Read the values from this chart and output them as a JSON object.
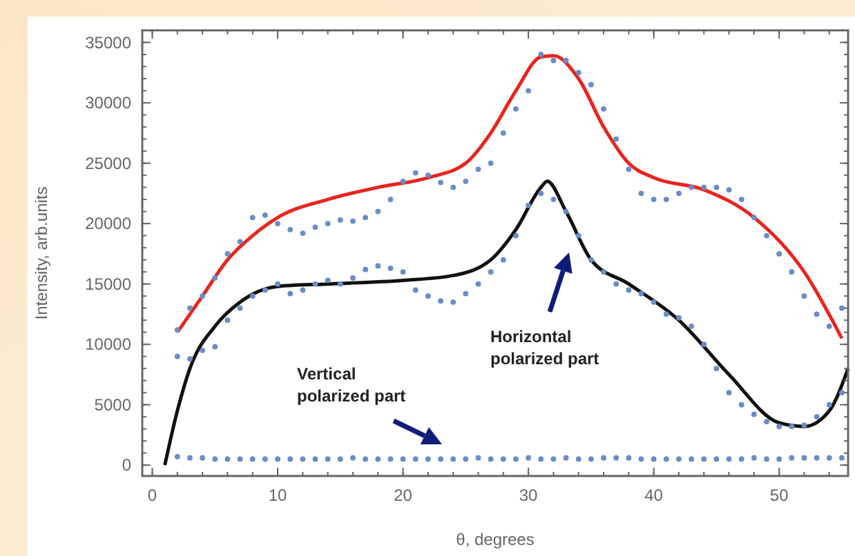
{
  "chart_data": {
    "type": "scatter",
    "xlabel": "θ, degrees",
    "ylabel": "Intensity, arb.units",
    "xlim": [
      -0.8,
      55.5
    ],
    "ylim": [
      -900,
      36000
    ],
    "xticks": [
      0,
      10,
      20,
      30,
      40,
      50
    ],
    "yticks": [
      0,
      5000,
      10000,
      15000,
      20000,
      25000,
      30000,
      35000
    ],
    "grid": false,
    "marker": "circle",
    "series": [
      {
        "color": "#6a8cc7",
        "x": [
          2,
          3,
          4,
          5,
          6,
          7,
          8,
          9,
          10,
          11,
          12,
          13,
          14,
          15,
          16,
          17,
          18,
          19,
          20,
          21,
          22,
          23,
          24,
          25,
          26,
          27,
          28,
          29,
          30,
          31,
          32,
          33,
          34,
          35,
          36,
          37,
          38,
          39,
          40,
          41,
          42,
          43,
          44,
          45,
          46,
          47,
          48,
          49,
          50,
          51,
          52,
          53,
          54,
          55
        ],
        "values": [
          11200,
          13000,
          14000,
          15500,
          17500,
          18500,
          20500,
          20700,
          20000,
          19500,
          19200,
          19700,
          20000,
          20300,
          20200,
          20500,
          21000,
          22000,
          23500,
          24200,
          24000,
          23400,
          23000,
          23500,
          24500,
          25000,
          27500,
          29500,
          31000,
          34000,
          33500,
          33500,
          32500,
          31500,
          29500,
          27000,
          24500,
          22500,
          22000,
          22000,
          22500,
          23000,
          23000,
          23000,
          22800,
          22000,
          20500,
          19000,
          17500,
          16000,
          14000,
          12500,
          11500,
          13000
        ]
      },
      {
        "color": "#6a8cc7",
        "x": [
          2,
          3,
          4,
          5,
          6,
          7,
          8,
          9,
          10,
          11,
          12,
          13,
          14,
          15,
          16,
          17,
          18,
          19,
          20,
          21,
          22,
          23,
          24,
          25,
          26,
          27,
          28,
          29,
          30,
          31,
          32,
          33,
          34,
          35,
          36,
          37,
          38,
          39,
          40,
          41,
          42,
          43,
          44,
          45,
          46,
          47,
          48,
          49,
          50,
          51,
          52,
          53,
          54,
          55
        ],
        "values": [
          9000,
          8800,
          9500,
          9800,
          12000,
          13000,
          14000,
          14500,
          15000,
          14200,
          14500,
          15000,
          15300,
          15000,
          15500,
          16200,
          16500,
          16300,
          16000,
          14500,
          14000,
          13600,
          13500,
          14200,
          15000,
          16000,
          17000,
          19000,
          21500,
          22500,
          22000,
          21000,
          19000,
          17000,
          16000,
          15000,
          14500,
          14200,
          13500,
          12500,
          12200,
          11500,
          10000,
          8000,
          6000,
          5000,
          4200,
          3600,
          3200,
          3200,
          3300,
          4000,
          5000,
          6000
        ]
      },
      {
        "color": "#6a8cc7",
        "x": [
          2,
          3,
          4,
          5,
          6,
          7,
          8,
          9,
          10,
          11,
          12,
          13,
          14,
          15,
          16,
          17,
          18,
          19,
          20,
          21,
          22,
          23,
          24,
          25,
          26,
          27,
          28,
          29,
          30,
          31,
          32,
          33,
          34,
          35,
          36,
          37,
          38,
          39,
          40,
          41,
          42,
          43,
          44,
          45,
          46,
          47,
          48,
          49,
          50,
          51,
          52,
          53,
          54,
          55
        ],
        "values": [
          700,
          600,
          600,
          500,
          500,
          500,
          500,
          500,
          500,
          500,
          500,
          500,
          500,
          500,
          600,
          500,
          500,
          500,
          500,
          500,
          500,
          500,
          500,
          500,
          600,
          500,
          500,
          500,
          600,
          500,
          500,
          600,
          500,
          500,
          600,
          600,
          600,
          500,
          500,
          500,
          500,
          500,
          500,
          500,
          500,
          500,
          600,
          500,
          500,
          600,
          600,
          600,
          600,
          600
        ]
      },
      {
        "type": "line",
        "marker": "none",
        "color": "#e8241f",
        "x": [
          2,
          4,
          6,
          8,
          10,
          14,
          18,
          22,
          25,
          27,
          29,
          31,
          32,
          34,
          36,
          38,
          40,
          44,
          48,
          52,
          55
        ],
        "values": [
          11000,
          14000,
          17000,
          19000,
          20500,
          22000,
          23000,
          23800,
          25000,
          27500,
          31000,
          33800,
          33900,
          32000,
          28000,
          25000,
          23800,
          22800,
          20500,
          16000,
          10500
        ]
      },
      {
        "type": "line",
        "marker": "none",
        "color": "#111111",
        "x": [
          1,
          2,
          3,
          5,
          7,
          10,
          14,
          20,
          24,
          27,
          29,
          31,
          31.5,
          33,
          35,
          38,
          42,
          46,
          50,
          52,
          54,
          55.5
        ],
        "values": [
          0,
          4500,
          8000,
          11500,
          13500,
          14800,
          15000,
          15300,
          15700,
          17000,
          19500,
          23000,
          23500,
          21000,
          17000,
          15000,
          12000,
          7500,
          3500,
          3200,
          4500,
          8000
        ]
      }
    ],
    "annotations": [
      "Horizontal polarized part",
      "Vertical polarized part"
    ]
  }
}
